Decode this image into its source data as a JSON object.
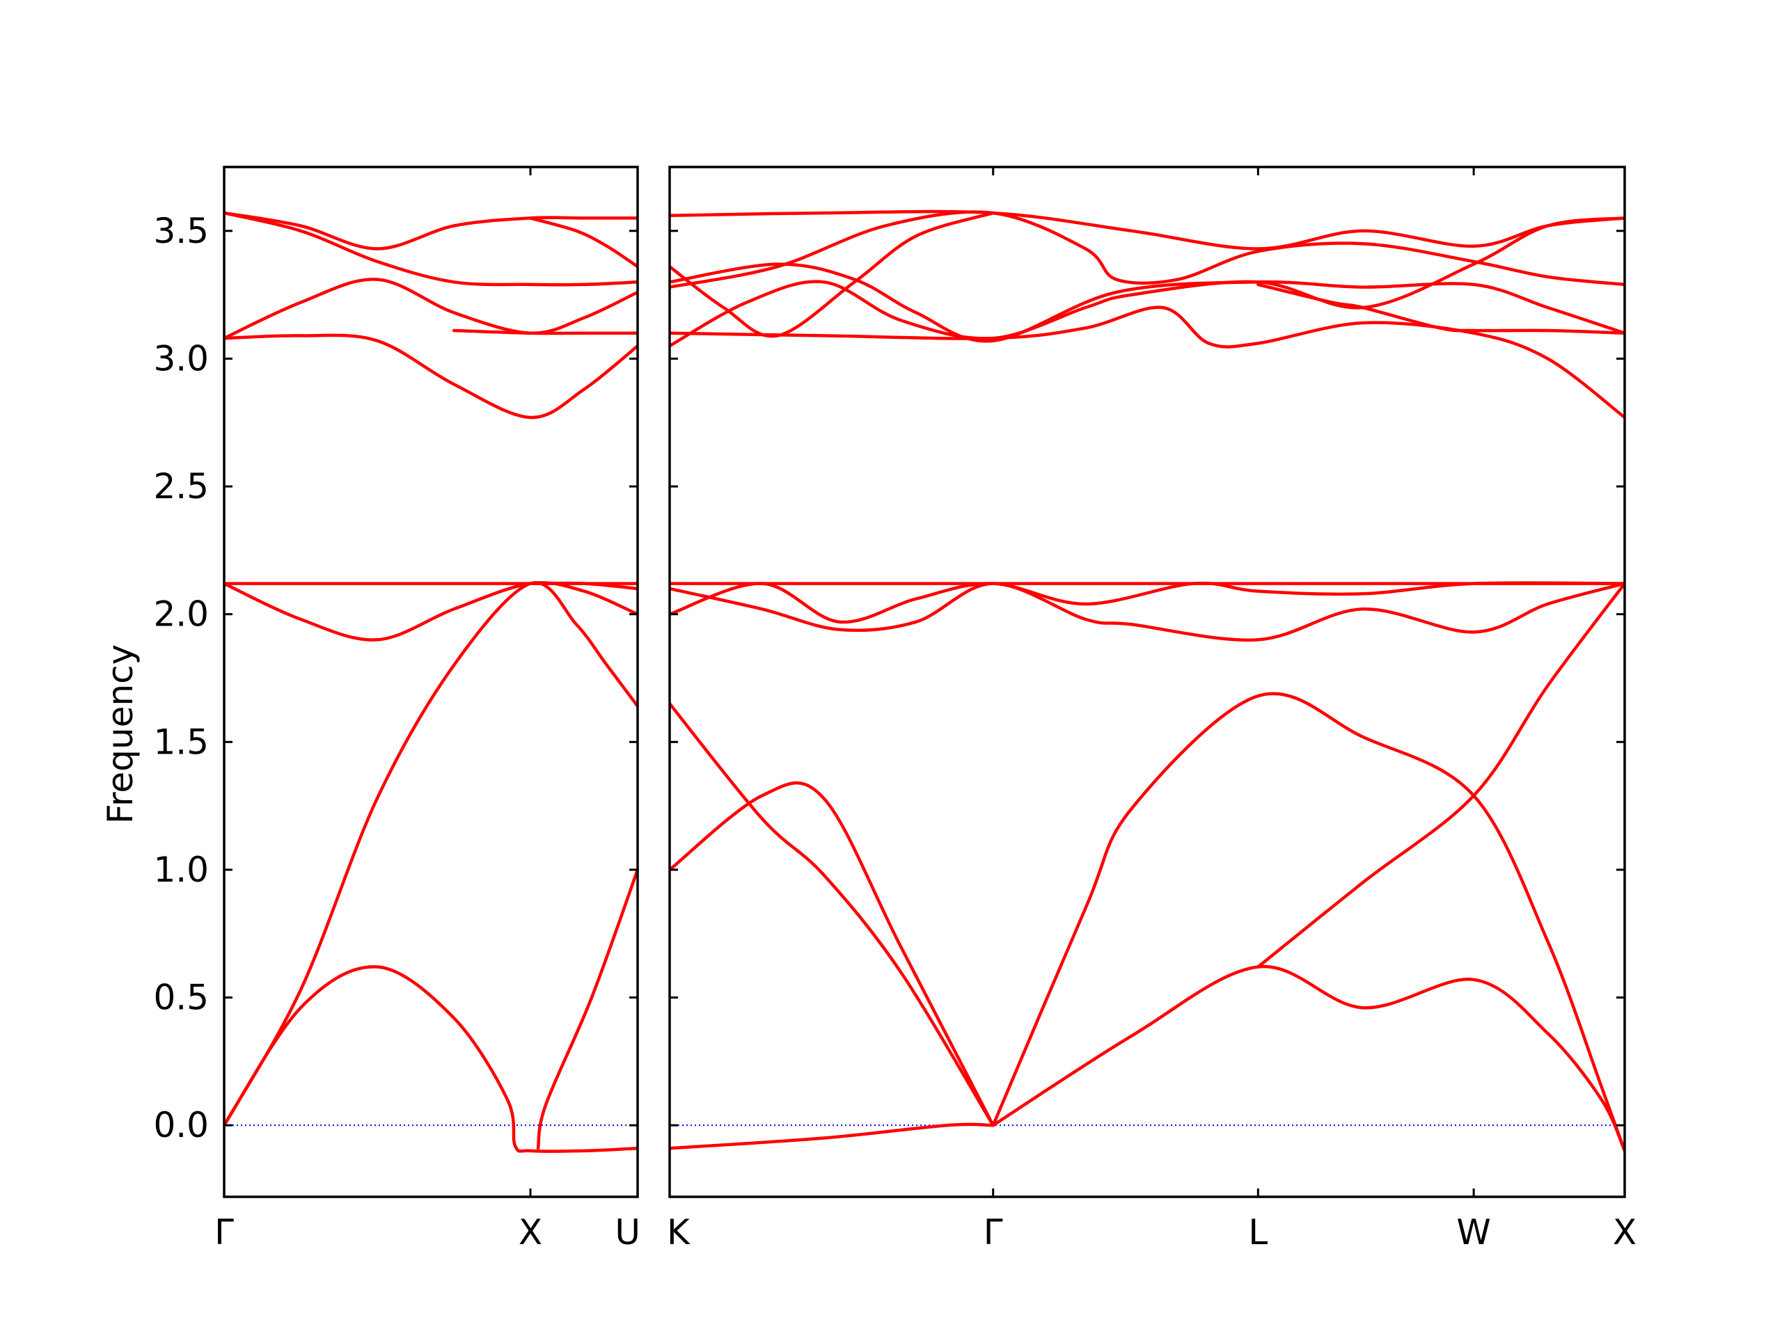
{
  "chart_data": {
    "type": "line",
    "title": "",
    "ylabel": "Frequency",
    "ylim": [
      -0.28,
      3.75
    ],
    "y_ticks": [
      "0.0",
      "0.5",
      "1.0",
      "1.5",
      "2.0",
      "2.5",
      "3.0",
      "3.5"
    ],
    "y_tick_values": [
      0.0,
      0.5,
      1.0,
      1.5,
      2.0,
      2.5,
      3.0,
      3.5
    ],
    "zero_line": true,
    "grid": false,
    "legend": "none",
    "colors": {
      "bands": "#ff0000",
      "zero_line": "#0000ff",
      "axes": "#000000"
    },
    "panels": [
      {
        "segments": [
          "Γ-X",
          "X-U"
        ],
        "x_range": [
          0,
          2.7
        ],
        "x_ticks": [
          {
            "label": "Γ",
            "x": 0
          },
          {
            "label": "X",
            "x": 2.0
          },
          {
            "label": "U",
            "x": 2.7
          }
        ],
        "series": [
          {
            "values": [
              [
                0,
                3.57
              ],
              [
                0.5,
                3.52
              ],
              [
                1.0,
                3.43
              ],
              [
                1.5,
                3.52
              ],
              [
                2.0,
                3.55
              ],
              [
                2.35,
                3.55
              ],
              [
                2.7,
                3.55
              ]
            ]
          },
          {
            "values": [
              [
                0,
                3.57
              ],
              [
                0.5,
                3.5
              ],
              [
                1.0,
                3.38
              ],
              [
                1.5,
                3.3
              ],
              [
                2.0,
                3.29
              ],
              [
                2.35,
                3.29
              ],
              [
                2.7,
                3.3
              ]
            ]
          },
          {
            "values": [
              [
                2.0,
                3.55
              ],
              [
                2.3,
                3.5
              ],
              [
                2.5,
                3.44
              ],
              [
                2.7,
                3.36
              ]
            ]
          },
          {
            "values": [
              [
                0,
                3.08
              ],
              [
                0.5,
                3.22
              ],
              [
                1.0,
                3.31
              ],
              [
                1.5,
                3.18
              ],
              [
                2.0,
                3.1
              ],
              [
                2.35,
                3.16
              ],
              [
                2.7,
                3.26
              ]
            ]
          },
          {
            "values": [
              [
                0,
                3.08
              ],
              [
                0.5,
                3.09
              ],
              [
                1.0,
                3.07
              ],
              [
                1.5,
                2.9
              ],
              [
                2.0,
                2.77
              ],
              [
                2.35,
                2.88
              ],
              [
                2.7,
                3.05
              ]
            ]
          },
          {
            "values": [
              [
                1.5,
                3.11
              ],
              [
                2.0,
                3.1
              ],
              [
                2.35,
                3.1
              ],
              [
                2.7,
                3.1
              ]
            ]
          },
          {
            "values": [
              [
                0,
                2.12
              ],
              [
                2.0,
                2.12
              ],
              [
                2.7,
                2.12
              ]
            ]
          },
          {
            "values": [
              [
                0,
                2.12
              ],
              [
                0.5,
                1.98
              ],
              [
                1.0,
                1.9
              ],
              [
                1.5,
                2.02
              ],
              [
                2.0,
                2.12
              ],
              [
                2.35,
                2.09
              ],
              [
                2.7,
                2.0
              ]
            ]
          },
          {
            "values": [
              [
                2.0,
                2.12
              ],
              [
                2.35,
                2.12
              ],
              [
                2.7,
                2.1
              ]
            ]
          },
          {
            "values": [
              [
                0,
                0.0
              ],
              [
                0.5,
                0.53
              ],
              [
                1.0,
                1.28
              ],
              [
                1.5,
                1.8
              ],
              [
                2.0,
                2.12
              ],
              [
                2.3,
                1.96
              ],
              [
                2.5,
                1.8
              ],
              [
                2.7,
                1.64
              ]
            ]
          },
          {
            "values": [
              [
                0,
                0.0
              ],
              [
                0.5,
                0.46
              ],
              [
                1.0,
                0.62
              ],
              [
                1.5,
                0.42
              ],
              [
                1.85,
                0.1
              ],
              [
                1.9,
                -0.08
              ],
              [
                2.0,
                -0.1
              ],
              [
                2.35,
                -0.1
              ],
              [
                2.7,
                -0.09
              ]
            ]
          },
          {
            "values": [
              [
                2.05,
                -0.09
              ],
              [
                2.1,
                0.08
              ],
              [
                2.4,
                0.5
              ],
              [
                2.7,
                1.0
              ]
            ]
          }
        ]
      },
      {
        "segments": [
          "K-Γ",
          "Γ-L",
          "L-W",
          "W-X"
        ],
        "x_range": [
          0,
          6.2
        ],
        "x_ticks": [
          {
            "label": "K",
            "x": 0
          },
          {
            "label": "Γ",
            "x": 2.1
          },
          {
            "label": "L",
            "x": 3.82
          },
          {
            "label": "W",
            "x": 5.22
          },
          {
            "label": "X",
            "x": 6.2
          }
        ],
        "series": [
          {
            "values": [
              [
                0,
                3.56
              ],
              [
                1.0,
                3.57
              ],
              [
                2.1,
                3.57
              ],
              [
                3.0,
                3.5
              ],
              [
                3.82,
                3.43
              ],
              [
                4.5,
                3.5
              ],
              [
                5.22,
                3.44
              ],
              [
                5.7,
                3.52
              ],
              [
                6.2,
                3.55
              ]
            ]
          },
          {
            "values": [
              [
                0,
                3.28
              ],
              [
                0.7,
                3.36
              ],
              [
                1.4,
                3.52
              ],
              [
                2.1,
                3.57
              ],
              [
                2.7,
                3.43
              ],
              [
                2.9,
                3.31
              ],
              [
                3.3,
                3.31
              ],
              [
                3.82,
                3.42
              ],
              [
                4.5,
                3.45
              ],
              [
                5.22,
                3.38
              ],
              [
                5.7,
                3.32
              ],
              [
                6.2,
                3.29
              ]
            ]
          },
          {
            "values": [
              [
                0,
                3.36
              ],
              [
                0.35,
                3.2
              ],
              [
                0.7,
                3.09
              ],
              [
                1.2,
                3.3
              ],
              [
                1.6,
                3.48
              ],
              [
                2.1,
                3.57
              ]
            ]
          },
          {
            "values": [
              [
                0,
                3.3
              ],
              [
                0.7,
                3.37
              ],
              [
                1.2,
                3.31
              ],
              [
                1.6,
                3.18
              ],
              [
                2.1,
                3.07
              ],
              [
                2.9,
                3.26
              ],
              [
                3.82,
                3.3
              ],
              [
                4.5,
                3.28
              ],
              [
                5.22,
                3.29
              ],
              [
                5.7,
                3.2
              ],
              [
                6.2,
                3.1
              ]
            ]
          },
          {
            "values": [
              [
                0,
                3.05
              ],
              [
                0.5,
                3.22
              ],
              [
                1.0,
                3.3
              ],
              [
                1.5,
                3.15
              ],
              [
                2.1,
                3.08
              ],
              [
                2.7,
                3.2
              ],
              [
                3.0,
                3.25
              ],
              [
                3.82,
                3.3
              ],
              [
                4.5,
                3.2
              ],
              [
                5.22,
                3.37
              ],
              [
                5.7,
                3.52
              ],
              [
                6.2,
                3.55
              ]
            ]
          },
          {
            "values": [
              [
                0,
                3.1
              ],
              [
                1.0,
                3.09
              ],
              [
                2.1,
                3.08
              ],
              [
                2.7,
                3.12
              ],
              [
                3.2,
                3.2
              ],
              [
                3.5,
                3.06
              ],
              [
                3.82,
                3.06
              ],
              [
                4.5,
                3.14
              ],
              [
                5.22,
                3.1
              ],
              [
                5.7,
                3.0
              ],
              [
                6.2,
                2.77
              ]
            ]
          },
          {
            "values": [
              [
                3.82,
                3.29
              ],
              [
                4.3,
                3.22
              ],
              [
                4.5,
                3.2
              ],
              [
                5.0,
                3.12
              ],
              [
                5.22,
                3.11
              ],
              [
                5.7,
                3.11
              ],
              [
                6.2,
                3.1
              ]
            ]
          },
          {
            "values": [
              [
                0,
                2.12
              ],
              [
                1.0,
                2.12
              ],
              [
                2.1,
                2.12
              ],
              [
                3.82,
                2.12
              ],
              [
                5.22,
                2.12
              ],
              [
                6.2,
                2.12
              ]
            ]
          },
          {
            "values": [
              [
                0,
                2.1
              ],
              [
                0.6,
                2.02
              ],
              [
                1.1,
                1.94
              ],
              [
                1.6,
                1.97
              ],
              [
                2.1,
                2.12
              ],
              [
                2.7,
                1.98
              ],
              [
                3.0,
                1.96
              ],
              [
                3.82,
                1.9
              ],
              [
                4.5,
                2.02
              ],
              [
                5.22,
                1.93
              ],
              [
                5.7,
                2.04
              ],
              [
                6.2,
                2.12
              ]
            ]
          },
          {
            "values": [
              [
                0,
                2.0
              ],
              [
                0.6,
                2.12
              ],
              [
                1.1,
                1.97
              ],
              [
                1.6,
                2.06
              ],
              [
                2.1,
                2.12
              ],
              [
                2.7,
                2.04
              ],
              [
                3.4,
                2.12
              ],
              [
                3.82,
                2.09
              ],
              [
                4.5,
                2.08
              ],
              [
                5.22,
                2.12
              ],
              [
                6.2,
                2.12
              ]
            ]
          },
          {
            "values": [
              [
                0,
                1.65
              ],
              [
                0.6,
                1.2
              ],
              [
                1.0,
                0.98
              ],
              [
                1.5,
                0.6
              ],
              [
                2.1,
                0.0
              ]
            ]
          },
          {
            "values": [
              [
                0,
                1.0
              ],
              [
                0.6,
                1.29
              ],
              [
                1.0,
                1.28
              ],
              [
                1.5,
                0.7
              ],
              [
                2.1,
                0.0
              ]
            ]
          },
          {
            "values": [
              [
                0,
                -0.09
              ],
              [
                1.0,
                -0.05
              ],
              [
                1.8,
                0.0
              ],
              [
                2.1,
                0.0
              ]
            ]
          },
          {
            "values": [
              [
                2.1,
                0.0
              ],
              [
                2.7,
                0.85
              ],
              [
                3.0,
                1.24
              ],
              [
                3.82,
                1.68
              ],
              [
                4.5,
                1.52
              ],
              [
                5.22,
                1.29
              ],
              [
                5.7,
                0.72
              ],
              [
                6.05,
                0.15
              ],
              [
                6.2,
                -0.1
              ]
            ]
          },
          {
            "values": [
              [
                2.1,
                0.0
              ],
              [
                3.0,
                0.35
              ],
              [
                3.82,
                0.62
              ],
              [
                4.5,
                0.46
              ],
              [
                5.22,
                0.57
              ],
              [
                5.7,
                0.36
              ],
              [
                6.05,
                0.1
              ],
              [
                6.2,
                -0.1
              ]
            ]
          },
          {
            "values": [
              [
                3.82,
                0.62
              ],
              [
                4.5,
                0.95
              ],
              [
                5.22,
                1.29
              ],
              [
                5.7,
                1.72
              ],
              [
                6.2,
                2.12
              ]
            ]
          }
        ]
      }
    ]
  }
}
